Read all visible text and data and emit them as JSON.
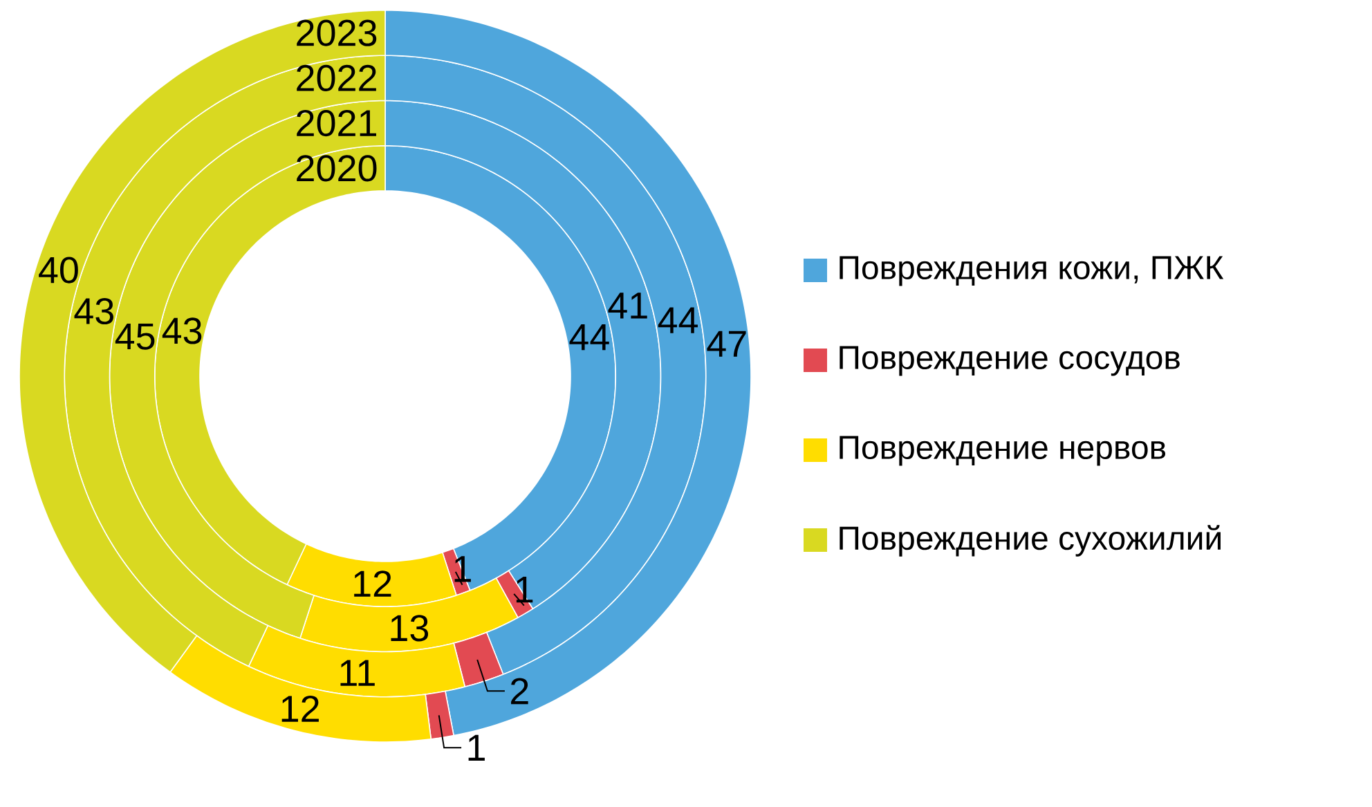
{
  "chart_data": {
    "type": "donut",
    "categories": [
      "Повреждения кожи, ПЖК",
      "Повреждение сосудов",
      "Повреждение нервов",
      "Повреждение сухожилий"
    ],
    "colors": [
      "#4fa6dc",
      "#e24a52",
      "#ffdd00",
      "#d9d921"
    ],
    "series": [
      {
        "name": "2020",
        "values": [
          44,
          1,
          12,
          43
        ]
      },
      {
        "name": "2021",
        "values": [
          41,
          1,
          13,
          45
        ]
      },
      {
        "name": "2022",
        "values": [
          44,
          2,
          11,
          43
        ]
      },
      {
        "name": "2023",
        "values": [
          47,
          1,
          12,
          40
        ]
      }
    ],
    "data_labels": true,
    "legend": "right"
  }
}
